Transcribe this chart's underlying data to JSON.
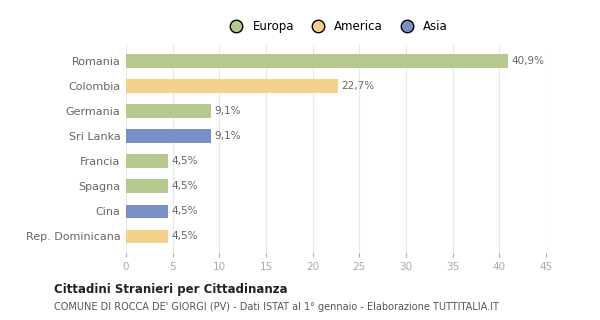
{
  "categories": [
    "Romania",
    "Colombia",
    "Germania",
    "Sri Lanka",
    "Francia",
    "Spagna",
    "Cina",
    "Rep. Dominicana"
  ],
  "values": [
    40.9,
    22.7,
    9.1,
    9.1,
    4.5,
    4.5,
    4.5,
    4.5
  ],
  "labels": [
    "40,9%",
    "22,7%",
    "9,1%",
    "9,1%",
    "4,5%",
    "4,5%",
    "4,5%",
    "4,5%"
  ],
  "colors": [
    "#b5c98e",
    "#f5d08a",
    "#b5c98e",
    "#7a8fc7",
    "#b5c98e",
    "#b5c98e",
    "#7a8fc7",
    "#f5d08a"
  ],
  "legend": [
    {
      "label": "Europa",
      "color": "#b5c98e"
    },
    {
      "label": "America",
      "color": "#f5d08a"
    },
    {
      "label": "Asia",
      "color": "#7a8fc7"
    }
  ],
  "xlim": [
    0,
    45
  ],
  "xticks": [
    0,
    5,
    10,
    15,
    20,
    25,
    30,
    35,
    40,
    45
  ],
  "title": "Cittadini Stranieri per Cittadinanza",
  "subtitle": "COMUNE DI ROCCA DE' GIORGI (PV) - Dati ISTAT al 1° gennaio - Elaborazione TUTTITALIA.IT",
  "bg_color": "#ffffff",
  "grid_color": "#e8e8e8",
  "bar_height": 0.55
}
